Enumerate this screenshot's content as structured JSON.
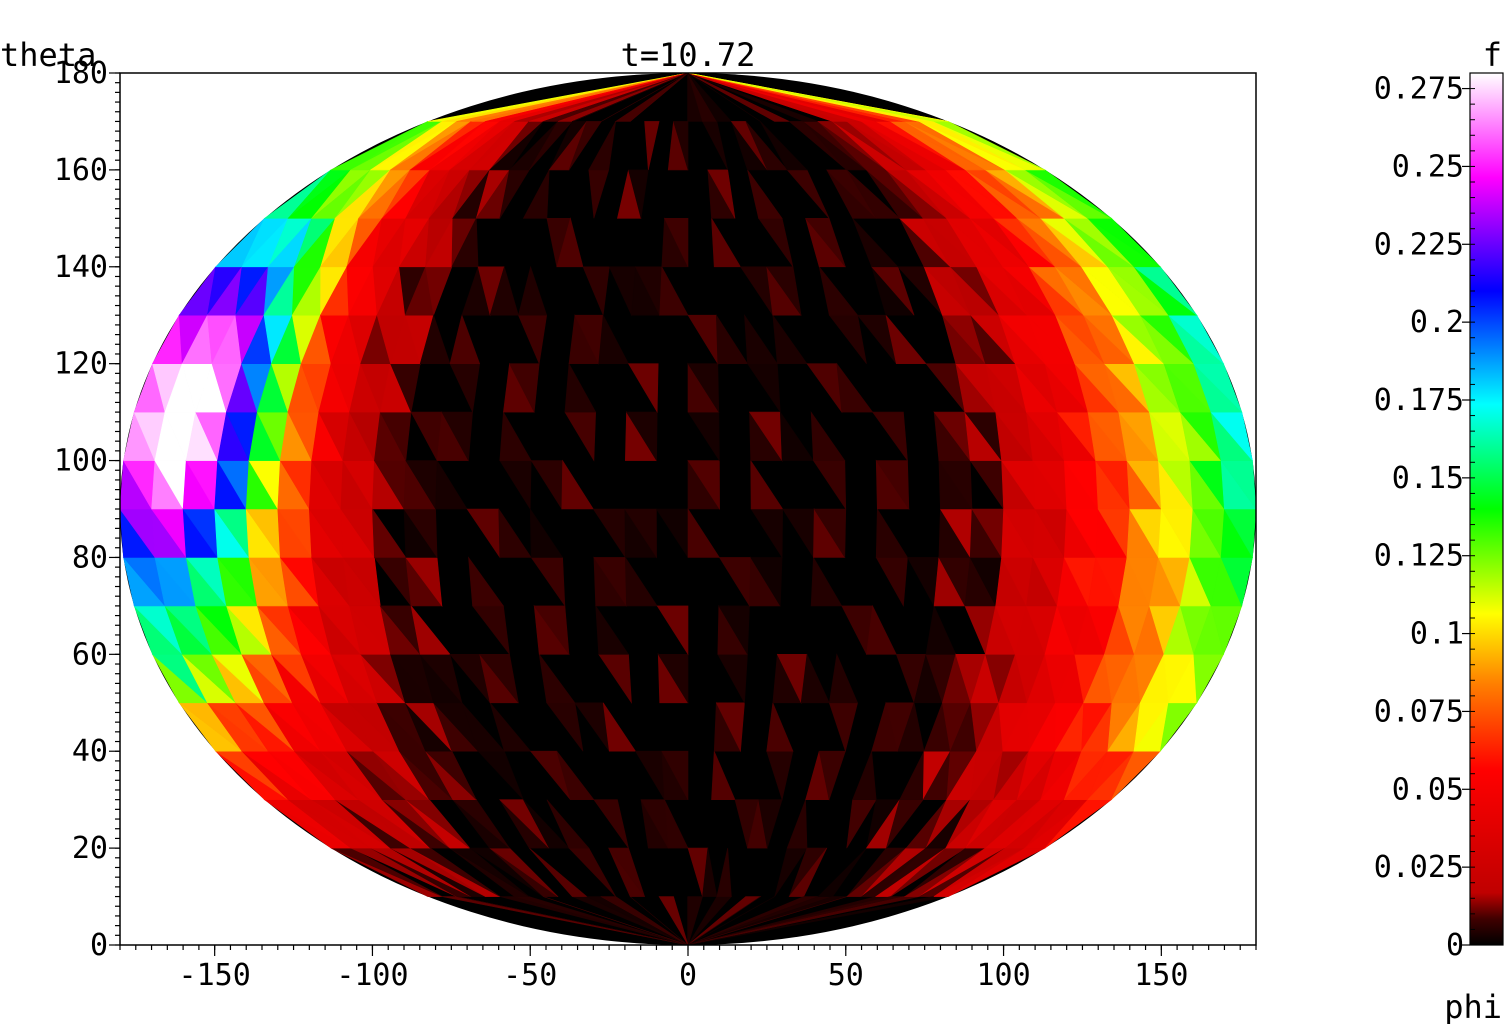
{
  "chart_data": {
    "type": "heatmap",
    "projection": "elliptical (Hammer/Mollweide-like) all-sky map",
    "title": "t=10.72",
    "xlabel": "phi",
    "ylabel": "theta",
    "colorbar_label": "f",
    "xlim": [
      -180,
      180
    ],
    "ylim": [
      0,
      180
    ],
    "x_ticks": [
      -150,
      -100,
      -50,
      0,
      50,
      100,
      150
    ],
    "x_tick_labels": [
      "-150",
      "-100",
      "-50",
      "0",
      "50",
      "100",
      "150"
    ],
    "y_ticks": [
      0,
      20,
      40,
      60,
      80,
      100,
      120,
      140,
      160,
      180
    ],
    "y_tick_labels": [
      "0",
      "20",
      "40",
      "60",
      "80",
      "100",
      "120",
      "140",
      "160",
      "180"
    ],
    "colorbar_range": [
      0,
      0.28
    ],
    "colorbar_ticks": [
      0,
      0.025,
      0.05,
      0.075,
      0.1,
      0.125,
      0.15,
      0.175,
      0.2,
      0.225,
      0.25,
      0.275
    ],
    "colorbar_tick_labels": [
      "0",
      "0.025",
      "0.05",
      "0.075",
      "0.1",
      "0.125",
      "0.15",
      "0.175",
      "0.2",
      "0.225",
      "0.25",
      "0.275"
    ],
    "colormap": [
      "#000000",
      "#400000",
      "#c00000",
      "#ff0000",
      "#ff8000",
      "#ffff00",
      "#00ff00",
      "#00ffff",
      "#0000ff",
      "#ff00ff",
      "#ffffff"
    ],
    "colormap_stops": [
      0,
      0.03,
      0.06,
      0.2,
      0.3,
      0.38,
      0.5,
      0.62,
      0.75,
      0.88,
      1.0
    ],
    "grid": false,
    "mesh": "triangulated",
    "field_features": [
      {
        "phi": -165,
        "theta": 115,
        "value": 0.28,
        "note": "peak"
      },
      {
        "phi": -155,
        "theta": 95,
        "value": 0.25
      },
      {
        "phi": -150,
        "theta": 135,
        "value": 0.22
      },
      {
        "phi": -140,
        "theta": 75,
        "value": 0.14
      },
      {
        "phi": 170,
        "theta": 105,
        "value": 0.15
      },
      {
        "phi": 165,
        "theta": 135,
        "value": 0.13
      },
      {
        "phi": 0,
        "theta": 90,
        "value": 0.0
      }
    ]
  }
}
